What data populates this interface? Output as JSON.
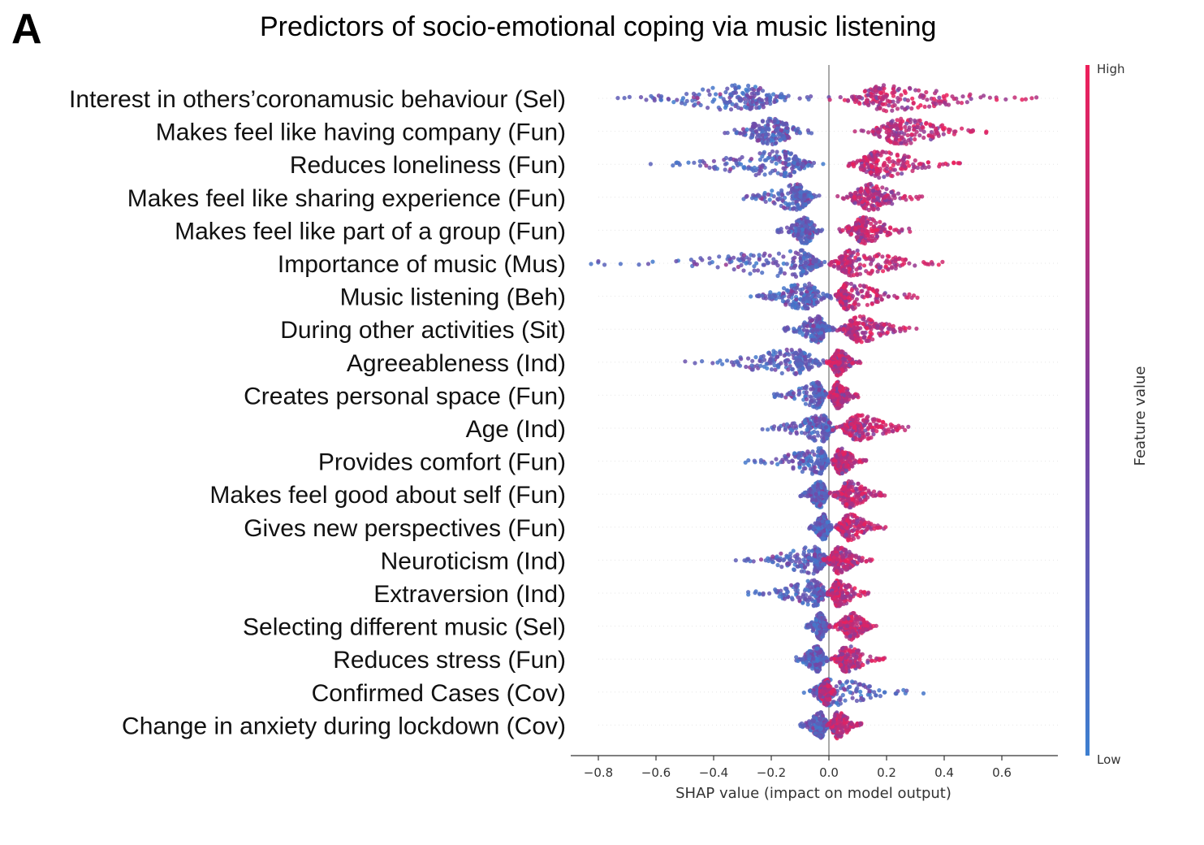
{
  "panel_letter": "A",
  "chart_data": {
    "type": "scatter",
    "subtype": "shap-beeswarm",
    "title": "Predictors of socio-emotional coping via music listening",
    "xlabel": "SHAP value (impact on model output)",
    "xlim": [
      -0.9,
      0.8
    ],
    "xticks": [
      -0.8,
      -0.6,
      -0.4,
      -0.2,
      0.0,
      0.2,
      0.4,
      0.6
    ],
    "xtick_labels": [
      "−0.8",
      "−0.6",
      "−0.4",
      "−0.2",
      "0.0",
      "0.2",
      "0.4",
      "0.6"
    ],
    "colorbar": {
      "title": "Feature value",
      "high_label": "High",
      "low_label": "Low",
      "high_color": "#ff0052",
      "low_color": "#008bfb"
    },
    "colors": {
      "low": "#3d7fd0",
      "mid": "#7b3fa0",
      "high": "#ee1f5a",
      "zero_line": "#aaaaaa"
    },
    "features": [
      {
        "name": "Interest in others’coronamusic behaviour (Sel)",
        "low_min": -0.74,
        "low_center": -0.3,
        "low_max": -0.05,
        "high_min": 0.0,
        "high_center": 0.2,
        "high_max": 0.72
      },
      {
        "name": "Makes feel like having company (Fun)",
        "low_min": -0.37,
        "low_center": -0.2,
        "low_max": -0.05,
        "high_min": 0.09,
        "high_center": 0.25,
        "high_max": 0.58
      },
      {
        "name": "Reduces loneliness (Fun)",
        "low_min": -0.62,
        "low_center": -0.16,
        "low_max": -0.02,
        "high_min": 0.05,
        "high_center": 0.17,
        "high_max": 0.47
      },
      {
        "name": "Makes feel like sharing experience (Fun)",
        "low_min": -0.32,
        "low_center": -0.11,
        "low_max": -0.03,
        "high_min": 0.03,
        "high_center": 0.14,
        "high_max": 0.33
      },
      {
        "name": "Makes feel like part of a group (Fun)",
        "low_min": -0.18,
        "low_center": -0.08,
        "low_max": -0.02,
        "high_min": 0.03,
        "high_center": 0.12,
        "high_max": 0.29
      },
      {
        "name": "Importance of music (Mus)",
        "low_min": -0.83,
        "low_center": -0.1,
        "low_max": 0.0,
        "high_min": -0.02,
        "high_center": 0.08,
        "high_max": 0.41
      },
      {
        "name": "Music listening (Beh)",
        "low_min": -0.3,
        "low_center": -0.08,
        "low_max": 0.02,
        "high_min": 0.01,
        "high_center": 0.06,
        "high_max": 0.31
      },
      {
        "name": "During other activities (Sit)",
        "low_min": -0.16,
        "low_center": -0.04,
        "low_max": 0.02,
        "high_min": 0.02,
        "high_center": 0.1,
        "high_max": 0.31
      },
      {
        "name": "Agreeableness (Ind)",
        "low_min": -0.5,
        "low_center": -0.12,
        "low_max": 0.02,
        "high_min": -0.01,
        "high_center": 0.03,
        "high_max": 0.11
      },
      {
        "name": "Creates personal space (Fun)",
        "low_min": -0.19,
        "low_center": -0.04,
        "low_max": 0.0,
        "high_min": 0.0,
        "high_center": 0.03,
        "high_max": 0.11
      },
      {
        "name": "Age (Ind)",
        "low_min": -0.24,
        "low_center": -0.02,
        "low_max": 0.03,
        "high_min": 0.01,
        "high_center": 0.1,
        "high_max": 0.3
      },
      {
        "name": "Provides comfort (Fun)",
        "low_min": -0.29,
        "low_center": -0.03,
        "low_max": 0.0,
        "high_min": 0.0,
        "high_center": 0.04,
        "high_max": 0.13
      },
      {
        "name": "Makes feel good about self (Fun)",
        "low_min": -0.1,
        "low_center": -0.03,
        "low_max": 0.0,
        "high_min": 0.0,
        "high_center": 0.07,
        "high_max": 0.2
      },
      {
        "name": "Gives new perspectives (Fun)",
        "low_min": -0.07,
        "low_center": -0.02,
        "low_max": 0.01,
        "high_min": 0.01,
        "high_center": 0.07,
        "high_max": 0.2
      },
      {
        "name": "Neuroticism (Ind)",
        "low_min": -0.33,
        "low_center": -0.05,
        "low_max": 0.02,
        "high_min": -0.02,
        "high_center": 0.03,
        "high_max": 0.15
      },
      {
        "name": "Extraversion (Ind)",
        "low_min": -0.28,
        "low_center": -0.05,
        "low_max": 0.02,
        "high_min": -0.01,
        "high_center": 0.03,
        "high_max": 0.15
      },
      {
        "name": "Selecting different music (Sel)",
        "low_min": -0.08,
        "low_center": -0.03,
        "low_max": 0.0,
        "high_min": 0.0,
        "high_center": 0.08,
        "high_max": 0.17
      },
      {
        "name": "Reduces stress (Fun)",
        "low_min": -0.12,
        "low_center": -0.04,
        "low_max": 0.0,
        "high_min": 0.0,
        "high_center": 0.06,
        "high_max": 0.2
      },
      {
        "name": "Confirmed Cases (Cov)",
        "low_min": -0.09,
        "low_center": 0.0,
        "low_max": 0.33,
        "high_min": -0.03,
        "high_center": -0.01,
        "high_max": 0.02
      },
      {
        "name": "Change in anxiety during lockdown (Cov)",
        "low_min": -0.1,
        "low_center": -0.03,
        "low_max": 0.0,
        "high_min": -0.01,
        "high_center": 0.03,
        "high_max": 0.12
      }
    ]
  }
}
